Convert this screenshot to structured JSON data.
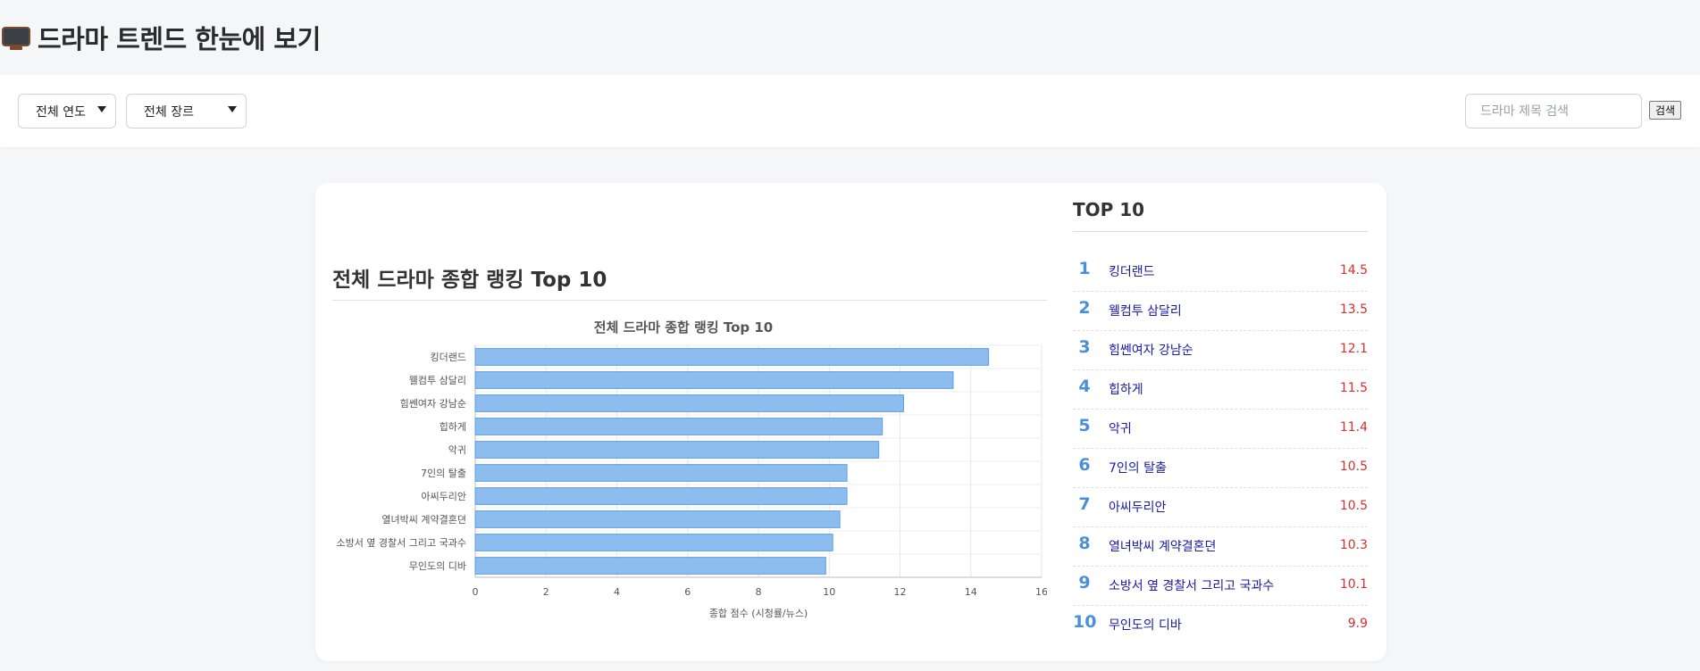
{
  "header": {
    "title": "드라마 트렌드 한눈에 보기",
    "icon": "tv-icon"
  },
  "filters": {
    "year": {
      "selected": "전체 연도"
    },
    "genre": {
      "selected": "전체 장르"
    },
    "search": {
      "placeholder": "드라마 제목 검색",
      "value": ""
    },
    "search_button": "검색"
  },
  "main": {
    "section_title": "전체 드라마 종합 랭킹 Top 10"
  },
  "top10": {
    "title": "TOP 10",
    "items": [
      {
        "rank": "1",
        "name": "킹더랜드",
        "score": "14.5"
      },
      {
        "rank": "2",
        "name": "웰컴투 삼달리",
        "score": "13.5"
      },
      {
        "rank": "3",
        "name": "힘쎈여자 강남순",
        "score": "12.1"
      },
      {
        "rank": "4",
        "name": "힙하게",
        "score": "11.5"
      },
      {
        "rank": "5",
        "name": "악귀",
        "score": "11.4"
      },
      {
        "rank": "6",
        "name": "7인의 탈출",
        "score": "10.5"
      },
      {
        "rank": "7",
        "name": "아씨두리안",
        "score": "10.5"
      },
      {
        "rank": "8",
        "name": "열녀박씨 계약결혼뎐",
        "score": "10.3"
      },
      {
        "rank": "9",
        "name": "소방서 옆 경찰서 그리고 국과수",
        "score": "10.1"
      },
      {
        "rank": "10",
        "name": "무인도의 디바",
        "score": "9.9"
      }
    ]
  },
  "colors": {
    "bar_fill": "#8dbdee",
    "bar_stroke": "#5a9fe0",
    "rank_num": "#4a90d9",
    "rank_name": "#1a1aa8",
    "rank_score": "#d32f2f"
  },
  "chart_data": {
    "type": "bar",
    "orientation": "horizontal",
    "title": "전체 드라마 종합 랭킹 Top 10",
    "xlabel": "종합 점수 (시청률/뉴스)",
    "ylabel": "",
    "categories": [
      "킹더랜드",
      "웰컴투 삼달리",
      "힘쎈여자 강남순",
      "힙하게",
      "악귀",
      "7인의 탈출",
      "아씨두리안",
      "열녀박씨 계약결혼뎐",
      "소방서 옆 경찰서 그리고 국과수",
      "무인도의 디바"
    ],
    "values": [
      14.5,
      13.5,
      12.1,
      11.5,
      11.4,
      10.5,
      10.5,
      10.3,
      10.1,
      9.9
    ],
    "xlim": [
      0,
      16
    ],
    "xticks": [
      0,
      2,
      4,
      6,
      8,
      10,
      12,
      14,
      16
    ],
    "grid": true,
    "legend": "none"
  }
}
